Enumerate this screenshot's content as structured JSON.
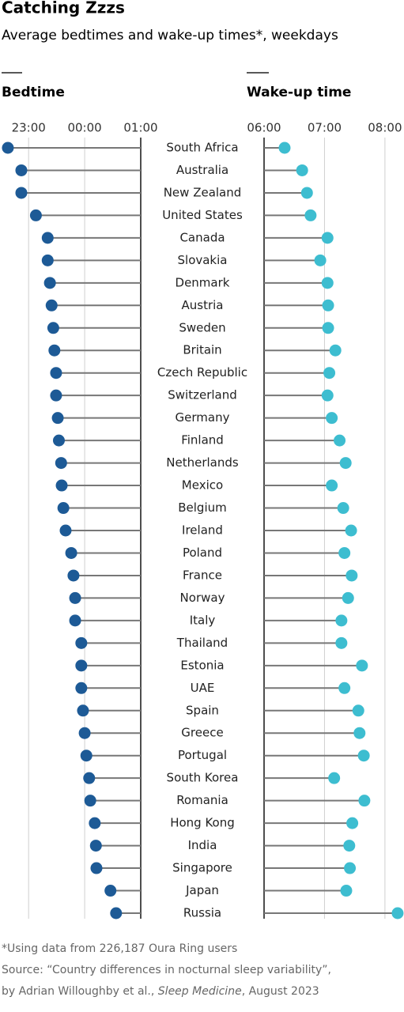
{
  "chart_data": {
    "type": "dot",
    "title": "Catching Zzzs",
    "subtitle": "Average bedtimes and wake-up times*, weekdays",
    "categories": [
      "South Africa",
      "Australia",
      "New Zealand",
      "United States",
      "Canada",
      "Slovakia",
      "Denmark",
      "Austria",
      "Sweden",
      "Britain",
      "Czech Republic",
      "Switzerland",
      "Germany",
      "Finland",
      "Netherlands",
      "Mexico",
      "Belgium",
      "Ireland",
      "Poland",
      "France",
      "Norway",
      "Italy",
      "Thailand",
      "Estonia",
      "UAE",
      "Spain",
      "Greece",
      "Portugal",
      "South Korea",
      "Romania",
      "Hong Kong",
      "India",
      "Singapore",
      "Japan",
      "Russia"
    ],
    "series": [
      {
        "name": "Bedtime",
        "color": "#1d5a96",
        "baseline": "right",
        "xlim": [
          22.56,
          25
        ],
        "xticks": [
          {
            "value": 23,
            "label": "23:00"
          },
          {
            "value": 24,
            "label": "00:00"
          },
          {
            "value": 25,
            "label": "01:00"
          }
        ],
        "values": [
          22.63,
          22.87,
          22.87,
          23.13,
          23.34,
          23.34,
          23.38,
          23.41,
          23.44,
          23.46,
          23.49,
          23.49,
          23.52,
          23.54,
          23.58,
          23.59,
          23.62,
          23.66,
          23.76,
          23.8,
          23.83,
          23.83,
          23.94,
          23.94,
          23.94,
          23.97,
          24.0,
          24.03,
          24.08,
          24.1,
          24.18,
          24.2,
          24.21,
          24.46,
          24.56
        ]
      },
      {
        "name": "Wake-up time",
        "color": "#3dbdd0",
        "baseline": "left",
        "xlim": [
          6,
          8.25
        ],
        "xticks": [
          {
            "value": 6,
            "label": "06:00"
          },
          {
            "value": 7,
            "label": "07:00"
          },
          {
            "value": 8,
            "label": "08:00"
          }
        ],
        "values": [
          6.34,
          6.63,
          6.71,
          6.77,
          7.05,
          6.93,
          7.05,
          7.06,
          7.06,
          7.18,
          7.08,
          7.05,
          7.12,
          7.25,
          7.35,
          7.12,
          7.31,
          7.44,
          7.33,
          7.45,
          7.39,
          7.28,
          7.28,
          7.62,
          7.33,
          7.56,
          7.58,
          7.65,
          7.16,
          7.66,
          7.46,
          7.41,
          7.42,
          7.36,
          8.21
        ]
      }
    ],
    "note": "*Using data from 226,187 Oura Ring users",
    "source": [
      "Source: “Country differences in nocturnal sleep variability”,",
      "by Adrian Willoughby et al., ",
      "Sleep Medicine",
      ", August 2023"
    ]
  }
}
